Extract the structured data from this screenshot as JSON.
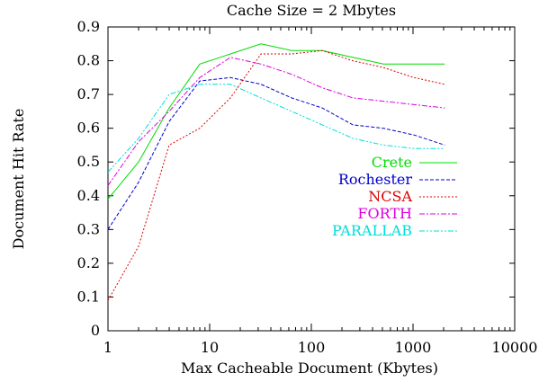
{
  "chart_data": {
    "type": "line",
    "title": "Cache Size = 2 Mbytes",
    "xlabel": "Max Cacheable Document (Kbytes)",
    "ylabel": "Document Hit Rate",
    "x_scale": "log",
    "xlim": [
      1,
      10000
    ],
    "ylim": [
      0,
      0.9
    ],
    "x_ticks": [
      {
        "value": 1,
        "label": "1"
      },
      {
        "value": 10,
        "label": "10"
      },
      {
        "value": 100,
        "label": "100"
      },
      {
        "value": 1000,
        "label": "1000"
      },
      {
        "value": 10000,
        "label": "10000"
      }
    ],
    "y_ticks": [
      {
        "value": 0,
        "label": "0"
      },
      {
        "value": 0.1,
        "label": "0.1"
      },
      {
        "value": 0.2,
        "label": "0.2"
      },
      {
        "value": 0.3,
        "label": "0.3"
      },
      {
        "value": 0.4,
        "label": "0.4"
      },
      {
        "value": 0.5,
        "label": "0.5"
      },
      {
        "value": 0.6,
        "label": "0.6"
      },
      {
        "value": 0.7,
        "label": "0.7"
      },
      {
        "value": 0.8,
        "label": "0.8"
      },
      {
        "value": 0.9,
        "label": "0.9"
      }
    ],
    "grid": false,
    "legend_position": "right",
    "series": [
      {
        "name": "Crete",
        "color": "#00dd00",
        "dash": "solid",
        "x": [
          1,
          2,
          4,
          8,
          16,
          32,
          64,
          128,
          256,
          512,
          1024,
          2048
        ],
        "y": [
          0.39,
          0.5,
          0.66,
          0.79,
          0.82,
          0.85,
          0.83,
          0.83,
          0.81,
          0.79,
          0.79,
          0.79
        ]
      },
      {
        "name": "Rochester",
        "color": "#0000cc",
        "dash": "dashed",
        "x": [
          1,
          2,
          4,
          8,
          16,
          32,
          64,
          128,
          256,
          512,
          1024,
          2048
        ],
        "y": [
          0.3,
          0.44,
          0.62,
          0.74,
          0.75,
          0.73,
          0.69,
          0.66,
          0.61,
          0.6,
          0.58,
          0.55
        ]
      },
      {
        "name": "NCSA",
        "color": "#dd0000",
        "dash": "dotted",
        "x": [
          1,
          2,
          4,
          8,
          16,
          32,
          64,
          128,
          256,
          512,
          1024,
          2048
        ],
        "y": [
          0.09,
          0.25,
          0.55,
          0.6,
          0.69,
          0.82,
          0.82,
          0.83,
          0.8,
          0.78,
          0.75,
          0.73
        ]
      },
      {
        "name": "FORTH",
        "color": "#dd00dd",
        "dash": "dashdot",
        "x": [
          1,
          2,
          4,
          8,
          16,
          32,
          64,
          128,
          256,
          512,
          1024,
          2048
        ],
        "y": [
          0.43,
          0.56,
          0.65,
          0.75,
          0.81,
          0.79,
          0.76,
          0.72,
          0.69,
          0.68,
          0.67,
          0.66
        ]
      },
      {
        "name": "PARALLAB",
        "color": "#00dddd",
        "dash": "dashdotdot",
        "x": [
          1,
          2,
          4,
          8,
          16,
          32,
          64,
          128,
          256,
          512,
          1024,
          2048
        ],
        "y": [
          0.47,
          0.57,
          0.7,
          0.73,
          0.73,
          0.69,
          0.65,
          0.61,
          0.57,
          0.55,
          0.54,
          0.54
        ]
      }
    ]
  }
}
